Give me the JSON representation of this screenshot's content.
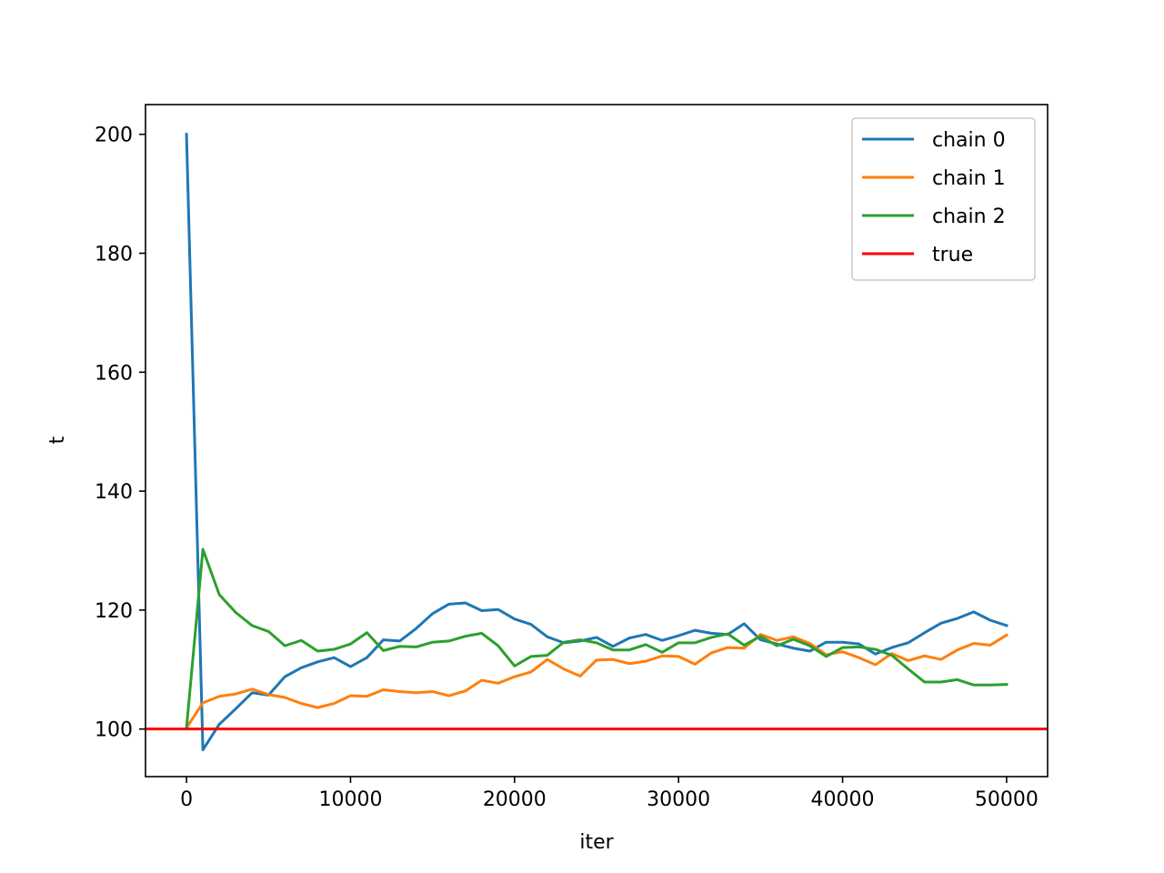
{
  "chart_data": {
    "type": "line",
    "xlabel": "iter",
    "ylabel": "t",
    "xlim": [
      -2500,
      52500
    ],
    "ylim": [
      92,
      205
    ],
    "xticks": [
      0,
      10000,
      20000,
      30000,
      40000,
      50000
    ],
    "yticks": [
      100,
      120,
      140,
      160,
      180,
      200
    ],
    "grid": false,
    "legend_position": "top-right",
    "x": [
      0,
      1000,
      2000,
      3000,
      4000,
      5000,
      6000,
      7000,
      8000,
      9000,
      10000,
      11000,
      12000,
      13000,
      14000,
      15000,
      16000,
      17000,
      18000,
      19000,
      20000,
      21000,
      22000,
      23000,
      24000,
      25000,
      26000,
      27000,
      28000,
      29000,
      30000,
      31000,
      32000,
      33000,
      34000,
      35000,
      36000,
      37000,
      38000,
      39000,
      40000,
      41000,
      42000,
      43000,
      44000,
      45000,
      46000,
      47000,
      48000,
      49000,
      50000
    ],
    "series": [
      {
        "name": "chain 0",
        "color": "#1f77b4",
        "values": [
          200,
          96.5,
          100.8,
          103.4,
          106.1,
          105.7,
          108.8,
          110.3,
          111.3,
          112.0,
          110.5,
          112.0,
          115.0,
          114.8,
          116.9,
          119.4,
          121.0,
          121.2,
          119.9,
          120.1,
          118.5,
          117.6,
          115.5,
          114.5,
          114.8,
          115.4,
          113.9,
          115.3,
          115.9,
          114.9,
          115.7,
          116.6,
          116.1,
          115.9,
          117.7,
          115.0,
          114.3,
          113.6,
          113.1,
          114.6,
          114.6,
          114.3,
          112.6,
          113.7,
          114.5,
          116.2,
          117.8,
          118.6,
          119.7,
          118.3,
          117.4
        ]
      },
      {
        "name": "chain 1",
        "color": "#ff7f0e",
        "values": [
          100.2,
          104.4,
          105.5,
          105.9,
          106.7,
          105.8,
          105.3,
          104.3,
          103.6,
          104.3,
          105.6,
          105.5,
          106.6,
          106.3,
          106.1,
          106.3,
          105.6,
          106.4,
          108.2,
          107.7,
          108.8,
          109.6,
          111.7,
          110.1,
          108.9,
          111.6,
          111.7,
          111.0,
          111.4,
          112.3,
          112.2,
          110.9,
          112.8,
          113.7,
          113.6,
          115.9,
          114.9,
          115.5,
          114.4,
          112.5,
          113.0,
          112.0,
          110.8,
          112.7,
          111.5,
          112.3,
          111.7,
          113.3,
          114.4,
          114.1,
          115.8
        ]
      },
      {
        "name": "chain 2",
        "color": "#2ca02c",
        "values": [
          100.2,
          130.2,
          122.6,
          119.6,
          117.4,
          116.4,
          114.0,
          114.9,
          113.1,
          113.4,
          114.3,
          116.2,
          113.2,
          113.9,
          113.8,
          114.6,
          114.8,
          115.6,
          116.1,
          114.0,
          110.6,
          112.2,
          112.4,
          114.6,
          115.0,
          114.5,
          113.3,
          113.3,
          114.2,
          112.9,
          114.5,
          114.5,
          115.4,
          116.0,
          114.1,
          115.6,
          114.0,
          115.1,
          114.0,
          112.2,
          113.7,
          113.8,
          113.4,
          112.4,
          110.1,
          107.9,
          107.9,
          108.3,
          107.4,
          107.4,
          107.5
        ]
      }
    ],
    "reference_lines": [
      {
        "name": "true",
        "color": "#ff0000",
        "y": 100
      }
    ]
  }
}
